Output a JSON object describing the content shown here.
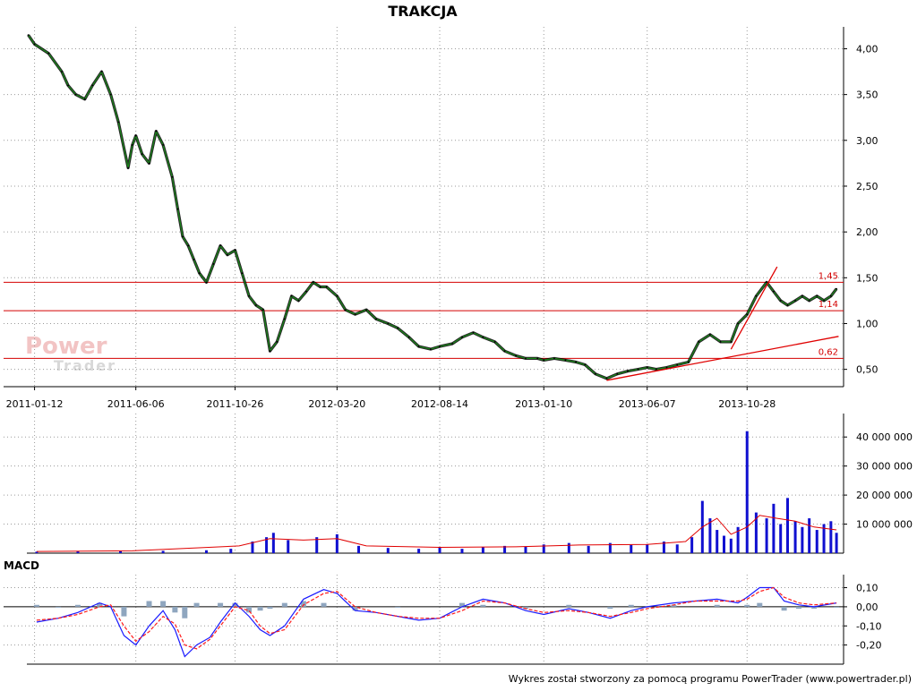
{
  "chart_data": [
    {
      "panel": "price",
      "type": "line",
      "title": "TRAKCJA",
      "x_tick_labels": [
        "2011-01-12",
        "2011-06-06",
        "2011-10-26",
        "2012-03-20",
        "2012-08-14",
        "2013-01-10",
        "2013-06-07",
        "2013-10-28"
      ],
      "x_range": [
        "2011-01-01",
        "2014-03-10"
      ],
      "y_tick_labels": [
        "4,00",
        "3,50",
        "3,00",
        "2,50",
        "2,00",
        "1,50",
        "1,00",
        "0,50"
      ],
      "y_ticks": [
        4.0,
        3.5,
        3.0,
        2.5,
        2.0,
        1.5,
        1.0,
        0.5
      ],
      "ylim": [
        0.35,
        4.2
      ],
      "grid": true,
      "series": [
        {
          "color": "#1a8a1a",
          "x": [
            "2011-01-03",
            "2011-01-12",
            "2011-02-01",
            "2011-02-20",
            "2011-03-01",
            "2011-03-12",
            "2011-03-25",
            "2011-04-05",
            "2011-04-18",
            "2011-05-01",
            "2011-05-12",
            "2011-05-26",
            "2011-06-01",
            "2011-06-06",
            "2011-06-15",
            "2011-06-25",
            "2011-07-05",
            "2011-07-15",
            "2011-07-28",
            "2011-08-05",
            "2011-08-12",
            "2011-08-20",
            "2011-08-28",
            "2011-09-05",
            "2011-09-15",
            "2011-09-25",
            "2011-10-05",
            "2011-10-15",
            "2011-10-26",
            "2011-11-05",
            "2011-11-15",
            "2011-11-25",
            "2011-12-05",
            "2011-12-15",
            "2011-12-25",
            "2012-01-05",
            "2012-01-15",
            "2012-01-25",
            "2012-02-05",
            "2012-02-15",
            "2012-02-25",
            "2012-03-05",
            "2012-03-20",
            "2012-04-01",
            "2012-04-15",
            "2012-05-01",
            "2012-05-15",
            "2012-06-01",
            "2012-06-15",
            "2012-07-01",
            "2012-07-15",
            "2012-08-01",
            "2012-08-14",
            "2012-09-01",
            "2012-09-15",
            "2012-10-01",
            "2012-10-15",
            "2012-11-01",
            "2012-11-15",
            "2012-12-01",
            "2012-12-15",
            "2013-01-01",
            "2013-01-10",
            "2013-01-25",
            "2013-02-10",
            "2013-02-25",
            "2013-03-10",
            "2013-03-25",
            "2013-04-10",
            "2013-04-25",
            "2013-05-10",
            "2013-05-25",
            "2013-06-07",
            "2013-06-20",
            "2013-07-05",
            "2013-07-20",
            "2013-08-05",
            "2013-08-20",
            "2013-09-05",
            "2013-09-20",
            "2013-10-05",
            "2013-10-15",
            "2013-10-28",
            "2013-11-10",
            "2013-11-25",
            "2013-12-05",
            "2013-12-15",
            "2013-12-25",
            "2014-01-05",
            "2014-01-15",
            "2014-01-25",
            "2014-02-05",
            "2014-02-15",
            "2014-02-25",
            "2014-03-05"
          ],
          "y": [
            4.15,
            4.05,
            3.95,
            3.75,
            3.6,
            3.5,
            3.45,
            3.6,
            3.75,
            3.5,
            3.2,
            2.7,
            2.95,
            3.05,
            2.85,
            2.75,
            3.1,
            2.95,
            2.6,
            2.25,
            1.95,
            1.85,
            1.7,
            1.55,
            1.45,
            1.65,
            1.85,
            1.75,
            1.8,
            1.55,
            1.3,
            1.2,
            1.15,
            0.7,
            0.8,
            1.05,
            1.3,
            1.25,
            1.35,
            1.45,
            1.4,
            1.4,
            1.3,
            1.15,
            1.1,
            1.15,
            1.05,
            1.0,
            0.95,
            0.85,
            0.75,
            0.72,
            0.75,
            0.78,
            0.85,
            0.9,
            0.85,
            0.8,
            0.7,
            0.65,
            0.62,
            0.62,
            0.6,
            0.62,
            0.6,
            0.58,
            0.55,
            0.45,
            0.4,
            0.45,
            0.48,
            0.5,
            0.52,
            0.5,
            0.52,
            0.55,
            0.58,
            0.8,
            0.88,
            0.8,
            0.8,
            1.0,
            1.1,
            1.3,
            1.45,
            1.35,
            1.25,
            1.2,
            1.25,
            1.3,
            1.25,
            1.3,
            1.25,
            1.3,
            1.38
          ]
        }
      ],
      "levels": [
        {
          "value": 1.45,
          "label": "1,45",
          "color": "#d40000"
        },
        {
          "value": 1.14,
          "label": "1,14",
          "color": "#d40000"
        },
        {
          "value": 0.62,
          "label": "0,62",
          "color": "#d40000"
        }
      ],
      "trendlines": [
        {
          "x": [
            "2013-04-10",
            "2014-03-08"
          ],
          "y": [
            0.38,
            0.86
          ],
          "color": "#e00000"
        },
        {
          "x": [
            "2013-10-05",
            "2013-12-10"
          ],
          "y": [
            0.72,
            1.62
          ],
          "color": "#e00000"
        }
      ],
      "watermark": {
        "line1": "Power",
        "line2": "Trader"
      }
    },
    {
      "panel": "volume",
      "type": "bar",
      "y_tick_labels": [
        "40 000 000",
        "30 000 000",
        "20 000 000",
        "10 000 000"
      ],
      "y_ticks": [
        40000000,
        30000000,
        20000000,
        10000000
      ],
      "ylim": [
        0,
        45000000
      ],
      "grid": true,
      "series": [
        {
          "color": "#1010d0",
          "x": [
            "2011-01-15",
            "2011-03-15",
            "2011-05-15",
            "2011-07-15",
            "2011-09-15",
            "2011-10-20",
            "2011-11-20",
            "2011-12-10",
            "2011-12-20",
            "2012-01-10",
            "2012-02-20",
            "2012-03-20",
            "2012-04-20",
            "2012-06-01",
            "2012-07-15",
            "2012-08-14",
            "2012-09-15",
            "2012-10-15",
            "2012-11-15",
            "2012-12-15",
            "2013-01-10",
            "2013-02-15",
            "2013-03-15",
            "2013-04-15",
            "2013-05-15",
            "2013-06-07",
            "2013-07-01",
            "2013-07-20",
            "2013-08-10",
            "2013-08-25",
            "2013-09-05",
            "2013-09-15",
            "2013-09-25",
            "2013-10-05",
            "2013-10-15",
            "2013-10-28",
            "2013-11-10",
            "2013-11-25",
            "2013-12-05",
            "2013-12-15",
            "2013-12-25",
            "2014-01-05",
            "2014-01-15",
            "2014-01-25",
            "2014-02-05",
            "2014-02-15",
            "2014-02-25",
            "2014-03-05"
          ],
          "y": [
            500000,
            700000,
            900000,
            800000,
            1000000,
            1500000,
            4000000,
            5500000,
            7000000,
            4500000,
            5500000,
            6500000,
            2500000,
            1800000,
            1500000,
            2000000,
            1500000,
            2000000,
            2500000,
            2200000,
            3000000,
            3500000,
            2500000,
            3500000,
            2800000,
            3000000,
            4000000,
            3000000,
            5500000,
            18000000,
            12000000,
            8000000,
            6000000,
            5000000,
            9000000,
            42000000,
            14000000,
            12000000,
            17000000,
            10000000,
            19000000,
            11000000,
            9000000,
            12000000,
            8000000,
            10000000,
            11000000,
            7000000
          ]
        },
        {
          "color": "#e00000",
          "x": [
            "2011-01-15",
            "2011-06-01",
            "2011-11-01",
            "2011-12-15",
            "2012-02-01",
            "2012-03-20",
            "2012-05-01",
            "2012-08-14",
            "2012-12-01",
            "2013-03-01",
            "2013-06-07",
            "2013-08-01",
            "2013-08-25",
            "2013-09-15",
            "2013-10-05",
            "2013-10-28",
            "2013-11-15",
            "2013-12-10",
            "2014-01-05",
            "2014-02-01",
            "2014-03-05"
          ],
          "y": [
            600000,
            800000,
            2500000,
            5000000,
            4500000,
            5000000,
            2500000,
            2000000,
            2200000,
            2800000,
            3000000,
            4000000,
            9000000,
            12000000,
            6500000,
            9000000,
            13000000,
            12000000,
            11000000,
            9000000,
            8000000
          ]
        }
      ]
    },
    {
      "panel": "macd",
      "type": "line",
      "title": "MACD",
      "y_tick_labels": [
        "0,10",
        "0,00",
        "-0,10",
        "-0,20"
      ],
      "y_ticks": [
        0.1,
        0.0,
        -0.1,
        -0.2
      ],
      "ylim": [
        -0.3,
        0.14
      ],
      "grid": true,
      "series": [
        {
          "color": "#1a1aff",
          "x": [
            "2011-01-15",
            "2011-02-15",
            "2011-03-15",
            "2011-04-15",
            "2011-05-01",
            "2011-05-20",
            "2011-06-06",
            "2011-06-25",
            "2011-07-15",
            "2011-08-01",
            "2011-08-15",
            "2011-09-01",
            "2011-09-20",
            "2011-10-05",
            "2011-10-26",
            "2011-11-15",
            "2011-12-01",
            "2011-12-15",
            "2012-01-05",
            "2012-02-01",
            "2012-03-01",
            "2012-03-20",
            "2012-04-15",
            "2012-05-15",
            "2012-06-15",
            "2012-07-15",
            "2012-08-14",
            "2012-09-15",
            "2012-10-15",
            "2012-11-15",
            "2012-12-15",
            "2013-01-10",
            "2013-02-15",
            "2013-03-15",
            "2013-04-15",
            "2013-05-15",
            "2013-06-07",
            "2013-07-15",
            "2013-08-15",
            "2013-09-15",
            "2013-10-15",
            "2013-10-28",
            "2013-11-15",
            "2013-12-05",
            "2013-12-20",
            "2014-01-10",
            "2014-02-01",
            "2014-03-05"
          ],
          "y": [
            -0.08,
            -0.06,
            -0.03,
            0.02,
            0.0,
            -0.15,
            -0.2,
            -0.1,
            -0.02,
            -0.12,
            -0.26,
            -0.2,
            -0.16,
            -0.08,
            0.02,
            -0.05,
            -0.12,
            -0.15,
            -0.1,
            0.04,
            0.09,
            0.07,
            -0.02,
            -0.03,
            -0.05,
            -0.07,
            -0.06,
            0.0,
            0.04,
            0.02,
            -0.02,
            -0.04,
            -0.01,
            -0.03,
            -0.06,
            -0.02,
            0.0,
            0.02,
            0.03,
            0.04,
            0.02,
            0.05,
            0.1,
            0.1,
            0.03,
            0.01,
            0.0,
            0.02
          ]
        },
        {
          "color": "#ff1a1a",
          "x": [
            "2011-01-15",
            "2011-02-15",
            "2011-03-15",
            "2011-04-15",
            "2011-05-01",
            "2011-05-20",
            "2011-06-06",
            "2011-06-25",
            "2011-07-15",
            "2011-08-01",
            "2011-08-15",
            "2011-09-01",
            "2011-09-20",
            "2011-10-05",
            "2011-10-26",
            "2011-11-15",
            "2011-12-01",
            "2011-12-15",
            "2012-01-05",
            "2012-02-01",
            "2012-03-01",
            "2012-03-20",
            "2012-04-15",
            "2012-05-15",
            "2012-06-15",
            "2012-07-15",
            "2012-08-14",
            "2012-09-15",
            "2012-10-15",
            "2012-11-15",
            "2012-12-15",
            "2013-01-10",
            "2013-02-15",
            "2013-03-15",
            "2013-04-15",
            "2013-05-15",
            "2013-06-07",
            "2013-07-15",
            "2013-08-15",
            "2013-09-15",
            "2013-10-15",
            "2013-10-28",
            "2013-11-15",
            "2013-12-05",
            "2013-12-20",
            "2014-01-10",
            "2014-02-01",
            "2014-03-05"
          ],
          "y": [
            -0.07,
            -0.06,
            -0.04,
            0.0,
            0.01,
            -0.1,
            -0.18,
            -0.13,
            -0.05,
            -0.09,
            -0.2,
            -0.22,
            -0.17,
            -0.1,
            0.0,
            -0.02,
            -0.1,
            -0.14,
            -0.12,
            0.01,
            0.07,
            0.08,
            0.0,
            -0.03,
            -0.05,
            -0.06,
            -0.06,
            -0.02,
            0.03,
            0.02,
            -0.01,
            -0.03,
            -0.02,
            -0.03,
            -0.05,
            -0.03,
            -0.01,
            0.01,
            0.03,
            0.03,
            0.03,
            0.04,
            0.08,
            0.1,
            0.05,
            0.02,
            0.01,
            0.02
          ]
        },
        {
          "type": "bar",
          "color": "#8fa6bf",
          "x": [
            "2011-01-15",
            "2011-02-15",
            "2011-03-15",
            "2011-04-15",
            "2011-05-20",
            "2011-06-25",
            "2011-07-15",
            "2011-08-01",
            "2011-08-15",
            "2011-09-01",
            "2011-10-05",
            "2011-10-26",
            "2011-11-15",
            "2011-12-01",
            "2011-12-15",
            "2012-01-05",
            "2012-02-01",
            "2012-03-01",
            "2012-04-15",
            "2012-06-15",
            "2012-09-15",
            "2012-10-15",
            "2012-12-15",
            "2013-02-15",
            "2013-04-15",
            "2013-05-15",
            "2013-07-15",
            "2013-09-15",
            "2013-10-28",
            "2013-11-15",
            "2013-12-20",
            "2014-01-10",
            "2014-02-01",
            "2014-03-05"
          ],
          "y": [
            0.01,
            0.0,
            0.01,
            0.02,
            -0.05,
            0.03,
            0.03,
            -0.03,
            -0.06,
            0.02,
            0.02,
            0.02,
            -0.03,
            -0.02,
            -0.01,
            0.02,
            0.03,
            0.02,
            -0.02,
            0.0,
            0.02,
            0.01,
            -0.01,
            0.01,
            -0.01,
            0.01,
            0.01,
            0.01,
            0.01,
            0.02,
            -0.02,
            -0.01,
            -0.01,
            0.0
          ]
        }
      ]
    }
  ],
  "footer": "Wykres został stworzony za pomocą programu PowerTrader (www.powertrader.pl)"
}
